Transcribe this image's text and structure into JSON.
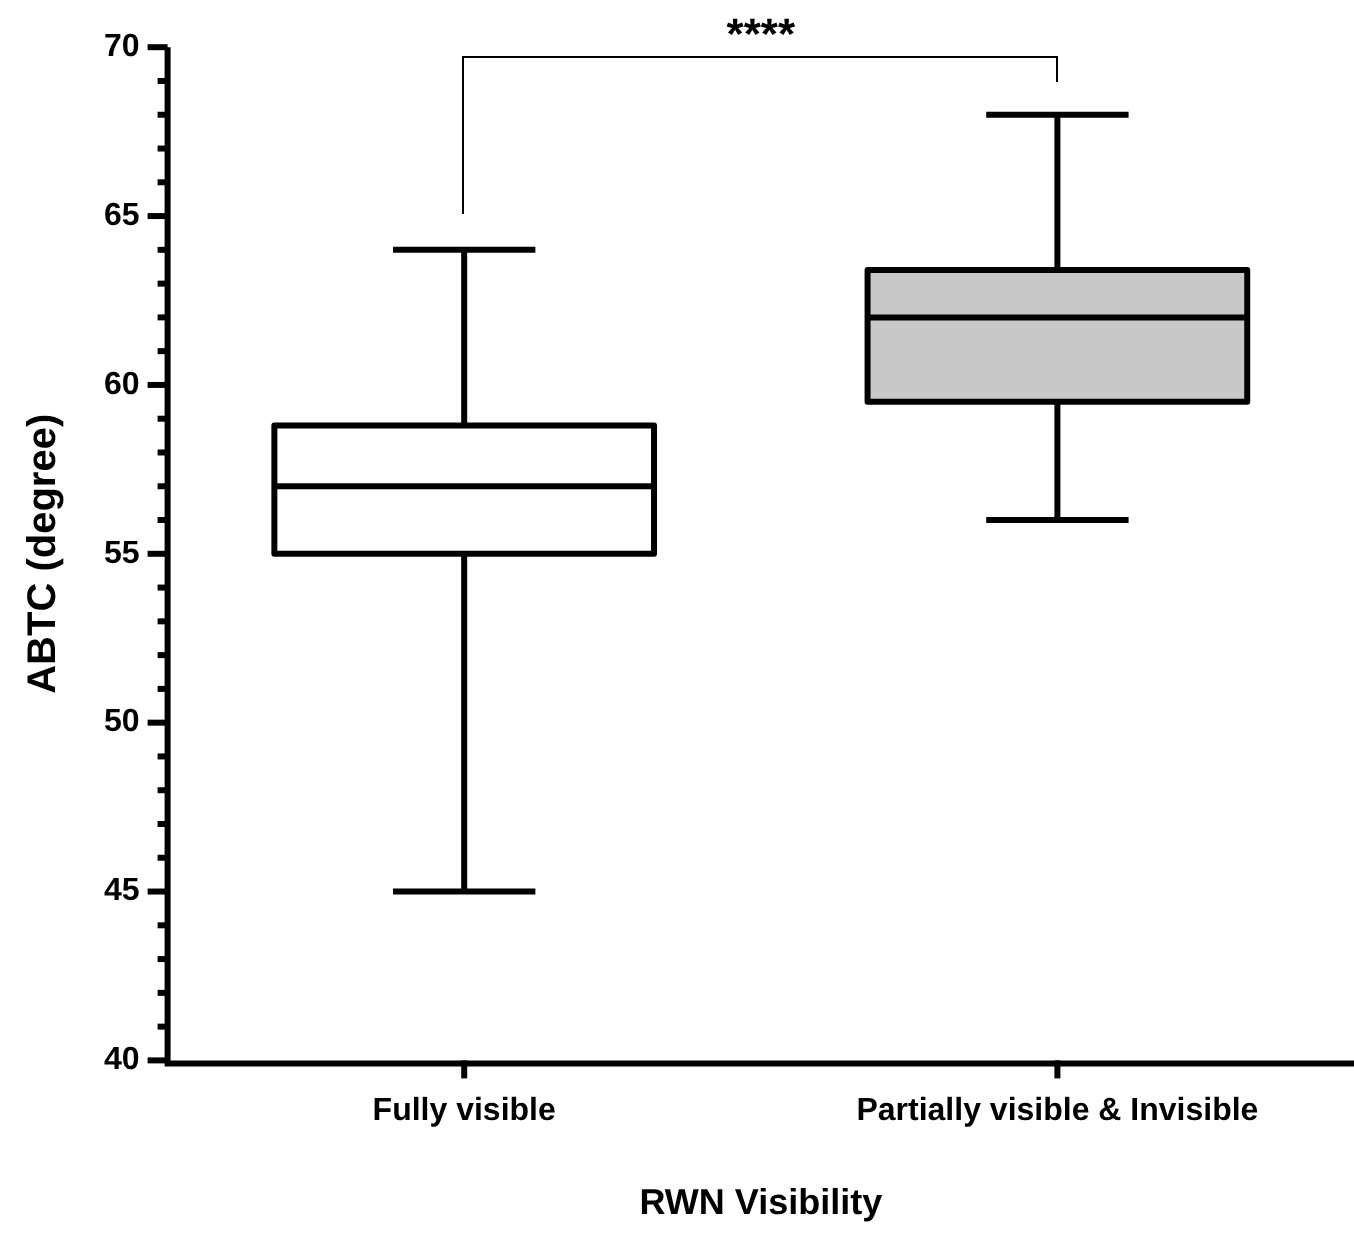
{
  "chart_data": {
    "type": "box",
    "xlabel": "RWN Visibility",
    "ylabel": "ABTC (degree)",
    "categories": [
      "Fully visible",
      "Partially visible & Invisible"
    ],
    "boxes": [
      {
        "low": 45,
        "q1": 55,
        "median": 57,
        "q3": 58.8,
        "high": 64
      },
      {
        "low": 56,
        "q1": 59.5,
        "median": 62,
        "q3": 63.4,
        "high": 68
      }
    ],
    "colors": [
      "#ffffff",
      "#c8c8c8"
    ],
    "ylim": [
      40,
      70
    ],
    "yticks": [
      40,
      {
        "value": 41,
        "label": null
      },
      {
        "value": 42,
        "label": null
      },
      {
        "value": 43,
        "label": null
      },
      {
        "value": 44,
        "label": null
      },
      45,
      {
        "value": 46,
        "label": null
      },
      {
        "value": 47,
        "label": null
      },
      {
        "value": 48,
        "label": null
      },
      {
        "value": 49,
        "label": null
      },
      50,
      {
        "value": 51,
        "label": null
      },
      {
        "value": 52,
        "label": null
      },
      {
        "value": 53,
        "label": null
      },
      {
        "value": 54,
        "label": null
      },
      55,
      {
        "value": 56,
        "label": null
      },
      {
        "value": 57,
        "label": null
      },
      {
        "value": 58,
        "label": null
      },
      {
        "value": 59,
        "label": null
      },
      60,
      {
        "value": 61,
        "label": null
      },
      {
        "value": 62,
        "label": null
      },
      {
        "value": 63,
        "label": null
      },
      {
        "value": 64,
        "label": null
      },
      65,
      {
        "value": 66,
        "label": null
      },
      {
        "value": 67,
        "label": null
      },
      {
        "value": 68,
        "label": null
      },
      {
        "value": 69,
        "label": null
      },
      70
    ],
    "annotations": [
      "****"
    ],
    "grid": false,
    "legend": false
  }
}
